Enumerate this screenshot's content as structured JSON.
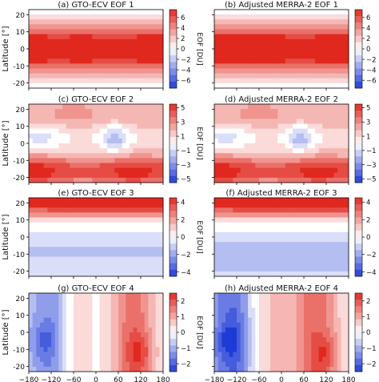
{
  "chart_data": [
    {
      "type": "heatmap",
      "title": "(a) GTO-ECV  EOF 1",
      "ylabel": "Latitude [°]",
      "xlabel": "",
      "xlim": [
        -180,
        180
      ],
      "ylim": [
        -23,
        23
      ],
      "x_ticks": [],
      "y_ticks": [
        -20,
        -10,
        0,
        10,
        20
      ],
      "colorbar": {
        "label": "EOF [DU]",
        "range": [
          -7.5,
          7.5
        ],
        "ticks": [
          -6,
          -4,
          -2,
          0,
          2,
          4,
          6
        ]
      },
      "pattern": {
        "base": 0.88,
        "lat": [
          [
            0,
            9,
            0.28
          ]
        ],
        "lon": [
          [
            -170,
            35,
            0.08
          ],
          [
            -40,
            35,
            0.06
          ],
          [
            150,
            40,
            0.08
          ]
        ],
        "blobs": [],
        "edge": -0.1
      }
    },
    {
      "type": "heatmap",
      "title": "(b) Adjusted MERRA-2  EOF 1",
      "ylabel": "",
      "xlabel": "",
      "xlim": [
        -180,
        180
      ],
      "ylim": [
        -23,
        23
      ],
      "x_ticks": [],
      "y_ticks": [],
      "colorbar": {
        "label": "EOF [DU]",
        "range": [
          -7.5,
          7.5
        ],
        "ticks": [
          -6,
          -4,
          -2,
          0,
          2,
          4,
          6
        ]
      },
      "pattern": {
        "base": 0.9,
        "lat": [
          [
            0,
            9,
            0.28
          ]
        ],
        "lon": [
          [
            -170,
            35,
            0.08
          ],
          [
            -40,
            35,
            0.06
          ],
          [
            150,
            40,
            0.08
          ]
        ],
        "blobs": [],
        "edge": -0.1
      }
    },
    {
      "type": "heatmap",
      "title": "(c) GTO-ECV  EOF 2",
      "ylabel": "Latitude [°]",
      "xlabel": "",
      "xlim": [
        -180,
        180
      ],
      "ylim": [
        -23,
        23
      ],
      "x_ticks": [],
      "y_ticks": [
        -20,
        -10,
        0,
        10,
        20
      ],
      "colorbar": {
        "label": "EOF [DU]",
        "range": [
          -5.5,
          5.5
        ],
        "ticks": [
          -5,
          -3,
          -1,
          1,
          3,
          5
        ]
      },
      "pattern": {
        "base": 0.0,
        "lat": [
          [
            -17,
            6,
            0.75
          ],
          [
            16,
            7,
            0.38
          ],
          [
            -8,
            6,
            0.2
          ]
        ],
        "lon": [],
        "blobs": [
          [
            -170,
            -18,
            40,
            6,
            0.35
          ],
          [
            100,
            -18,
            40,
            6,
            0.25
          ],
          [
            50,
            3,
            25,
            6,
            -0.45
          ],
          [
            -150,
            4,
            40,
            5,
            -0.25
          ],
          [
            -60,
            20,
            35,
            4,
            0.2
          ]
        ],
        "edge": 0
      }
    },
    {
      "type": "heatmap",
      "title": "(d) Adjusted MERRA-2  EOF 2",
      "ylabel": "",
      "xlabel": "",
      "xlim": [
        -180,
        180
      ],
      "ylim": [
        -23,
        23
      ],
      "x_ticks": [],
      "y_ticks": [],
      "colorbar": {
        "label": "EOF [DU]",
        "range": [
          -5.5,
          5.5
        ],
        "ticks": [
          -5,
          -3,
          -1,
          1,
          3,
          5
        ]
      },
      "pattern": {
        "base": 0.0,
        "lat": [
          [
            -17,
            6,
            0.75
          ],
          [
            16,
            7,
            0.38
          ],
          [
            -8,
            6,
            0.2
          ]
        ],
        "lon": [],
        "blobs": [
          [
            -170,
            -18,
            40,
            6,
            0.35
          ],
          [
            100,
            -18,
            40,
            6,
            0.25
          ],
          [
            50,
            3,
            25,
            6,
            -0.45
          ],
          [
            -150,
            4,
            40,
            5,
            -0.25
          ],
          [
            -60,
            20,
            35,
            4,
            0.2
          ]
        ],
        "edge": 0
      }
    },
    {
      "type": "heatmap",
      "title": "(e) GTO-ECV  EOF 3",
      "ylabel": "Latitude [°]",
      "xlabel": "",
      "xlim": [
        -180,
        180
      ],
      "ylim": [
        -23,
        23
      ],
      "x_ticks": [],
      "y_ticks": [
        -20,
        -10,
        0,
        10,
        20
      ],
      "colorbar": {
        "label": "EOF [DU]",
        "range": [
          -4.5,
          4.5
        ],
        "ticks": [
          -4,
          -2,
          0,
          2,
          4
        ]
      },
      "pattern": {
        "base": 0.0,
        "lat": [
          [
            20,
            6,
            0.95
          ],
          [
            -8,
            7,
            -0.25
          ],
          [
            -21,
            5,
            -0.15
          ]
        ],
        "lon": [],
        "blobs": [
          [
            -20,
            20,
            45,
            4,
            0.2
          ],
          [
            150,
            20,
            35,
            4,
            0.1
          ]
        ],
        "edge": 0
      }
    },
    {
      "type": "heatmap",
      "title": "(f) Adjusted MERRA-2  EOF 3",
      "ylabel": "",
      "xlabel": "",
      "xlim": [
        -180,
        180
      ],
      "ylim": [
        -23,
        23
      ],
      "x_ticks": [],
      "y_ticks": [],
      "colorbar": {
        "label": "EOF [DU]",
        "range": [
          -4.5,
          4.5
        ],
        "ticks": [
          -4,
          -2,
          0,
          2,
          4
        ]
      },
      "pattern": {
        "base": 0.0,
        "lat": [
          [
            20,
            6,
            0.95
          ],
          [
            -8,
            7,
            -0.3
          ],
          [
            -21,
            5,
            -0.2
          ]
        ],
        "lon": [],
        "blobs": [
          [
            -20,
            20,
            45,
            4,
            0.2
          ],
          [
            150,
            20,
            35,
            4,
            0.1
          ]
        ],
        "edge": 0
      }
    },
    {
      "type": "heatmap",
      "title": "(g) GTO-ECV  EOF 4",
      "ylabel": "Latitude [°]",
      "xlabel": "Longitude [°]",
      "xlim": [
        -180,
        180
      ],
      "ylim": [
        -23,
        23
      ],
      "x_ticks": [
        -180,
        -120,
        -60,
        0,
        60,
        120,
        180
      ],
      "y_ticks": [
        -20,
        -10,
        0,
        10,
        20
      ],
      "colorbar": {
        "label": "EOF [DU]",
        "range": [
          -2.5,
          2.5
        ],
        "ticks": [
          -2,
          -1,
          0,
          1,
          2
        ]
      },
      "pattern": {
        "base": 0.0,
        "lat": [],
        "lon": [
          [
            -150,
            40,
            -0.4
          ],
          [
            -110,
            25,
            -0.25
          ],
          [
            100,
            40,
            0.7
          ],
          [
            -50,
            30,
            0.15
          ]
        ],
        "blobs": [
          [
            -140,
            -5,
            25,
            8,
            -0.3
          ],
          [
            120,
            -12,
            25,
            8,
            0.35
          ]
        ],
        "edge": 0
      }
    },
    {
      "type": "heatmap",
      "title": "(h) Adjusted MERRA-2  EOF 4",
      "ylabel": "",
      "xlabel": "Longitude [°]",
      "xlim": [
        -180,
        180
      ],
      "ylim": [
        -23,
        23
      ],
      "x_ticks": [
        -180,
        -120,
        -60,
        0,
        60,
        120,
        180
      ],
      "y_ticks": [],
      "colorbar": {
        "label": "EOF [DU]",
        "range": [
          -2.5,
          2.5
        ],
        "ticks": [
          -2,
          -1,
          0,
          1,
          2
        ]
      },
      "pattern": {
        "base": 0.0,
        "lat": [],
        "lon": [
          [
            -150,
            40,
            -0.6
          ],
          [
            -110,
            25,
            -0.3
          ],
          [
            90,
            45,
            0.7
          ],
          [
            -30,
            40,
            0.25
          ]
        ],
        "blobs": [
          [
            -140,
            -5,
            25,
            8,
            -0.35
          ],
          [
            120,
            -12,
            25,
            8,
            0.35
          ]
        ],
        "edge": 0
      }
    }
  ],
  "colors": {
    "negative": "#1f3bd6",
    "zero": "#ffffff",
    "positive": "#e0281f"
  }
}
